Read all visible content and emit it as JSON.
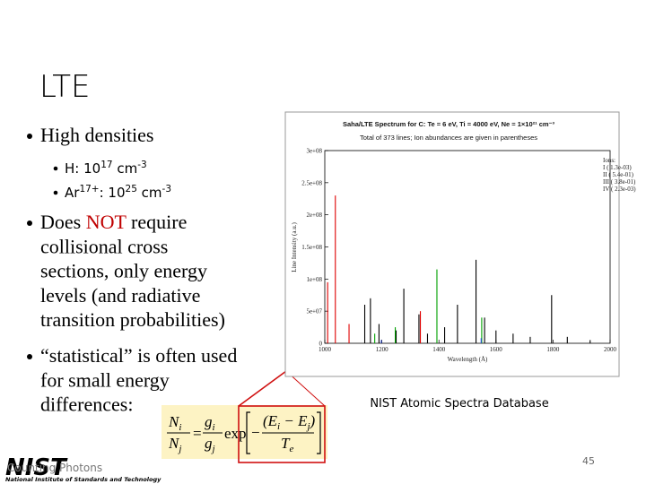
{
  "slide": {
    "title": "LTE",
    "bullets": [
      {
        "lines": [
          [
            {
              "text": "High densities"
            }
          ]
        ],
        "subitems": [
          [
            {
              "text": "H: 10"
            },
            {
              "text": "17",
              "sup": true
            },
            {
              "text": " cm"
            },
            {
              "text": "-3",
              "sup": true
            }
          ],
          [
            {
              "text": "Ar"
            },
            {
              "text": "17+",
              "sup": true
            },
            {
              "text": ": 10"
            },
            {
              "text": "25",
              "sup": true
            },
            {
              "text": " cm"
            },
            {
              "text": "-3",
              "sup": true
            }
          ]
        ]
      },
      {
        "lines": [
          [
            {
              "text": "Does "
            },
            {
              "text": "NOT",
              "color": "#c00000"
            },
            {
              "text": " require"
            }
          ],
          [
            {
              "text": "collisional cross"
            }
          ],
          [
            {
              "text": "sections, only energy"
            }
          ],
          [
            {
              "text": "levels (and radiative"
            }
          ],
          [
            {
              "text": "transition probabilities)"
            }
          ]
        ]
      },
      {
        "lines": [
          [
            {
              "text": "“statistical” is often used"
            }
          ],
          [
            {
              "text": "for small energy"
            }
          ],
          [
            {
              "text": "differences:"
            }
          ]
        ]
      }
    ],
    "equation": {
      "lhs": {
        "num": {
          "base": "N",
          "sub": "i"
        },
        "den": {
          "base": "N",
          "sub": "j"
        }
      },
      "relation": "=",
      "factor": {
        "num": {
          "base": "g",
          "sub": "i"
        },
        "den": {
          "base": "g",
          "sub": "j"
        }
      },
      "function": "exp",
      "sign": "−",
      "exponent": {
        "num": [
          {
            "base": "(E",
            "sub": "i"
          },
          {
            "base": " − E",
            "sub": "j"
          },
          {
            "base": ")"
          }
        ],
        "den": {
          "base": "T",
          "sub": "e"
        }
      }
    },
    "figure": {
      "title": "Saha/LTE Spectrum for C:  Te = 6 eV, Ti = 4000 eV, Ne = 1×10²¹ cm⁻³",
      "subtitle": "Total of 373 lines; Ion abundances are given in parentheses",
      "x_label": "Wavelength (Å)",
      "y_label": "Line Intensity (a.u.)",
      "legend_title": "Ions:",
      "xlim": [
        1000,
        2000
      ],
      "xticks": [
        1000,
        1200,
        1400,
        1600,
        1800,
        2000
      ],
      "ylim": [
        0,
        300000000
      ],
      "yticks": [
        0,
        {
          "value": 50000000,
          "label": "5e+07"
        },
        {
          "value": 100000000,
          "label": "1e+08"
        },
        {
          "value": 150000000,
          "label": "1.5e+08"
        },
        {
          "value": 200000000,
          "label": "2e+08"
        },
        {
          "value": 250000000,
          "label": "2.5e+08"
        },
        {
          "value": 300000000,
          "label": "3e+08"
        }
      ],
      "series": [
        {
          "name": "I ( 1.3e-03)",
          "color": "#000000",
          "x": [
            1140,
            1160,
            1190,
            1250,
            1277,
            1330,
            1360,
            1420,
            1465,
            1530,
            1560,
            1600,
            1660,
            1720,
            1795,
            1850,
            1930
          ],
          "values": [
            60000000,
            70000000,
            30000000,
            20000000,
            85000000,
            45000000,
            15000000,
            25000000,
            60000000,
            130000000,
            40000000,
            20000000,
            15000000,
            10000000,
            75000000,
            10000000,
            5000000
          ]
        },
        {
          "name": "II ( 5.4e-01)",
          "color": "#e00000",
          "x": [
            1010,
            1037,
            1085,
            1335
          ],
          "values": [
            95000000,
            230000000,
            30000000,
            50000000
          ]
        },
        {
          "name": "III ( 3.8e-01)",
          "color": "#00a000",
          "x": [
            1175,
            1247,
            1393,
            1550
          ],
          "values": [
            15000000,
            25000000,
            115000000,
            40000000
          ]
        },
        {
          "name": "IV ( 2.3e-03)",
          "color": "#3050e0",
          "x": [
            1198,
            1548
          ],
          "values": [
            5000000,
            8000000
          ]
        }
      ]
    },
    "caption": "NIST Atomic Spectra Database",
    "footer": "Counting Photons",
    "logo": {
      "name": "NIST",
      "subtitle": "National Institute of Standards and Technology"
    },
    "page_number": 45
  }
}
